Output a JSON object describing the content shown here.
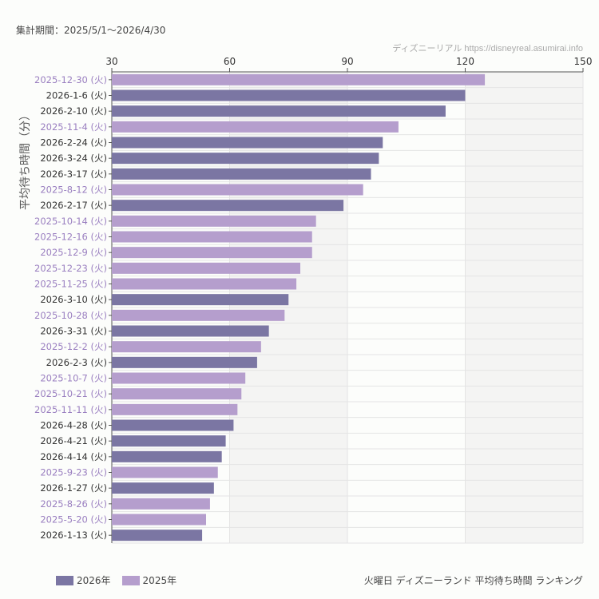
{
  "header": {
    "period": "集計期間：2025/5/1〜2026/4/30",
    "credit": "ディズニーリアル https://disneyreal.asumirai.info"
  },
  "colors": {
    "2026年": "#7b76a3",
    "2025年": "#b59ecd",
    "label_2025": "#9a7fc0",
    "label_2026": "#333333"
  },
  "chart_data": {
    "type": "bar",
    "orientation": "horizontal",
    "title": "火曜日 ディズニーランド 平均待ち時間 ランキング",
    "ylabel": "平均待ち時間（分）",
    "xlabel": "",
    "xlim": [
      30,
      150
    ],
    "xticks": [
      30,
      60,
      90,
      120,
      150
    ],
    "grid": true,
    "legend_position": "bottom-left",
    "legend": [
      "2026年",
      "2025年"
    ],
    "categories": [
      "2025-12-30 (火)",
      "2026-1-6 (火)",
      "2026-2-10 (火)",
      "2025-11-4 (火)",
      "2026-2-24 (火)",
      "2026-3-24 (火)",
      "2026-3-17 (火)",
      "2025-8-12 (火)",
      "2026-2-17 (火)",
      "2025-10-14 (火)",
      "2025-12-16 (火)",
      "2025-12-9 (火)",
      "2025-12-23 (火)",
      "2025-11-25 (火)",
      "2026-3-10 (火)",
      "2025-10-28 (火)",
      "2026-3-31 (火)",
      "2025-12-2 (火)",
      "2026-2-3 (火)",
      "2025-10-7 (火)",
      "2025-10-21 (火)",
      "2025-11-11 (火)",
      "2026-4-28 (火)",
      "2026-4-21 (火)",
      "2026-4-14 (火)",
      "2025-9-23 (火)",
      "2026-1-27 (火)",
      "2025-8-26 (火)",
      "2025-5-20 (火)",
      "2026-1-13 (火)"
    ],
    "values": [
      125,
      120,
      115,
      103,
      99,
      98,
      96,
      94,
      89,
      82,
      81,
      81,
      78,
      77,
      75,
      74,
      70,
      68,
      67,
      64,
      63,
      62,
      61,
      59,
      58,
      57,
      56,
      55,
      54,
      53
    ],
    "series_of_each": [
      "2025年",
      "2026年",
      "2026年",
      "2025年",
      "2026年",
      "2026年",
      "2026年",
      "2025年",
      "2026年",
      "2025年",
      "2025年",
      "2025年",
      "2025年",
      "2025年",
      "2026年",
      "2025年",
      "2026年",
      "2025年",
      "2026年",
      "2025年",
      "2025年",
      "2025年",
      "2026年",
      "2026年",
      "2026年",
      "2025年",
      "2026年",
      "2025年",
      "2025年",
      "2026年"
    ]
  }
}
